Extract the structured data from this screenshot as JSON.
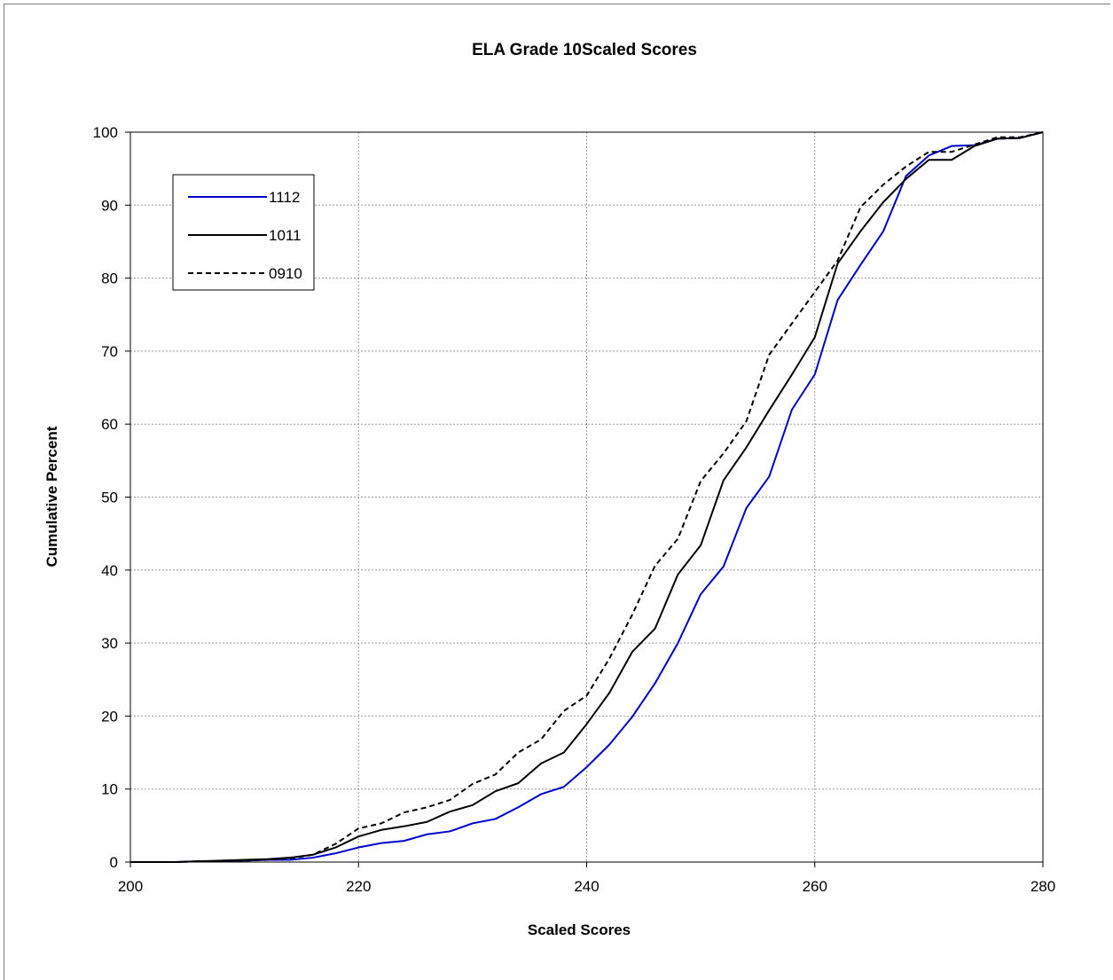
{
  "chart_data": {
    "type": "line",
    "title": "ELA  Grade 10Scaled Scores",
    "xlabel": "Scaled Scores",
    "ylabel": "Cumulative Percent",
    "xlim": [
      200,
      280
    ],
    "ylim": [
      0,
      100
    ],
    "x_ticks": [
      "200",
      "220",
      "240",
      "260",
      "280"
    ],
    "y_ticks": [
      "0",
      "10",
      "20",
      "30",
      "40",
      "50",
      "60",
      "70",
      "80",
      "90",
      "100"
    ],
    "grid": true,
    "legend_position": "top-left",
    "x": [
      200,
      202,
      204,
      206,
      208,
      210,
      212,
      214,
      216,
      218,
      220,
      222,
      224,
      226,
      228,
      230,
      232,
      234,
      236,
      238,
      240,
      242,
      244,
      246,
      248,
      250,
      252,
      254,
      256,
      258,
      260,
      262,
      264,
      266,
      268,
      270,
      272,
      274,
      276,
      278,
      280
    ],
    "series": [
      {
        "name": "1112",
        "color": "#0000cc",
        "dash": "solid",
        "values": [
          0,
          0,
          0,
          0.1,
          0.1,
          0.2,
          0.3,
          0.3,
          0.6,
          1.2,
          2.0,
          2.6,
          2.9,
          3.8,
          4.2,
          5.3,
          5.9,
          7.5,
          9.3,
          10.3,
          13.0,
          16.1,
          19.9,
          24.5,
          30.0,
          36.7,
          40.5,
          48.5,
          52.8,
          62.0,
          66.8,
          77.0,
          81.8,
          86.4,
          94.0,
          96.8,
          98.1,
          98.2,
          99.1,
          99.2,
          100
        ]
      },
      {
        "name": "1011",
        "color": "#000000",
        "dash": "solid",
        "values": [
          0,
          0,
          0,
          0.1,
          0.2,
          0.3,
          0.4,
          0.6,
          1.0,
          2.0,
          3.5,
          4.4,
          4.9,
          5.5,
          6.9,
          7.8,
          9.7,
          10.8,
          13.5,
          15.0,
          18.9,
          23.2,
          28.8,
          32.0,
          39.4,
          43.4,
          52.3,
          56.8,
          61.9,
          66.8,
          71.9,
          82.0,
          86.4,
          90.4,
          93.6,
          96.2,
          96.2,
          98.1,
          99.1,
          99.2,
          100
        ]
      },
      {
        "name": "0910",
        "color": "#000000",
        "dash": "dashed",
        "values": [
          0,
          0,
          0,
          0.1,
          0.1,
          0.2,
          0.3,
          0.5,
          1.0,
          2.5,
          4.6,
          5.3,
          6.8,
          7.5,
          8.5,
          10.7,
          12.0,
          15.0,
          16.8,
          20.7,
          22.8,
          27.9,
          33.9,
          40.6,
          44.3,
          52.2,
          56.0,
          60.4,
          69.5,
          73.8,
          78.1,
          82.4,
          89.7,
          92.8,
          95.3,
          97.3,
          97.3,
          98.3,
          99.3,
          99.3,
          100
        ]
      }
    ]
  }
}
